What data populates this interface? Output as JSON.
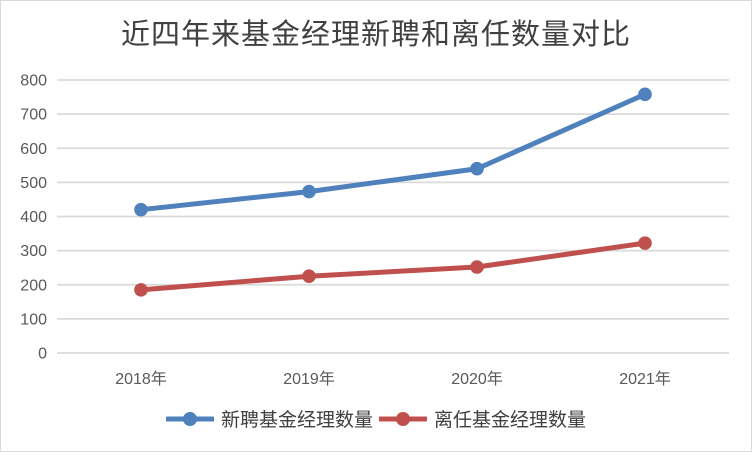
{
  "chart_data": {
    "type": "line",
    "title": "近四年来基金经理新聘和离任数量对比",
    "categories": [
      "2018年",
      "2019年",
      "2020年",
      "2021年"
    ],
    "series": [
      {
        "name": "新聘基金经理数量",
        "values": [
          420,
          473,
          540,
          758
        ],
        "color": "#4F81BD"
      },
      {
        "name": "离任基金经理数量",
        "values": [
          185,
          225,
          252,
          322
        ],
        "color": "#C0504D"
      }
    ],
    "yticks": [
      0,
      100,
      200,
      300,
      400,
      500,
      600,
      700,
      800
    ],
    "ylim": [
      0,
      800
    ],
    "xlabel": "",
    "ylabel": "",
    "grid": "horizontal",
    "legend_position": "bottom",
    "marker": "circle"
  },
  "colors": {
    "background": "#FFFFFF",
    "border": "#D9D9D9",
    "gridline": "#DADADA",
    "tick_label": "#595959",
    "title_text": "#404040",
    "legend_text": "#404040",
    "series_blue": "#4F81BD",
    "series_red": "#C0504D"
  }
}
